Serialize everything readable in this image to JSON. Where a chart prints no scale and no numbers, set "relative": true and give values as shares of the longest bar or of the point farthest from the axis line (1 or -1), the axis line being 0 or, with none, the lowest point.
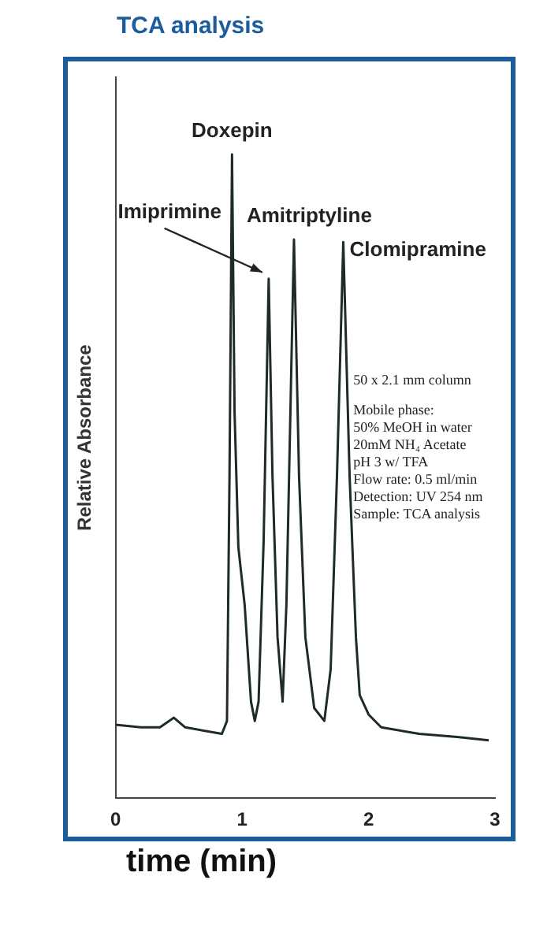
{
  "chart_data": {
    "type": "line",
    "title": "TCA analysis",
    "xlabel": "time (min)",
    "ylabel": "Relative Absorbance",
    "relative": true,
    "x": [
      0,
      0.2,
      0.35,
      0.46,
      0.55,
      0.84,
      0.88,
      0.9,
      0.92,
      0.94,
      0.97,
      1.02,
      1.07,
      1.1,
      1.13,
      1.17,
      1.21,
      1.24,
      1.28,
      1.32,
      1.35,
      1.41,
      1.45,
      1.5,
      1.57,
      1.65,
      1.7,
      1.75,
      1.8,
      1.85,
      1.9,
      1.93,
      2.0,
      2.1,
      2.4,
      2.7,
      2.95
    ],
    "series": [
      {
        "color": "#1e2b28",
        "values": [
          0.114,
          0.11,
          0.11,
          0.125,
          0.11,
          0.1,
          0.12,
          0.5,
          1.0,
          0.6,
          0.39,
          0.3,
          0.15,
          0.12,
          0.15,
          0.4,
          0.807,
          0.5,
          0.25,
          0.15,
          0.3,
          0.868,
          0.5,
          0.25,
          0.14,
          0.12,
          0.2,
          0.5,
          0.864,
          0.5,
          0.25,
          0.16,
          0.13,
          0.11,
          0.1,
          0.095,
          0.09
        ]
      }
    ],
    "xlim": [
      0,
      3
    ],
    "xticks": [
      0,
      1,
      2,
      3
    ],
    "marker": "none",
    "annotations": [
      {
        "text": "Doxepin",
        "x": 0.92,
        "y": 1.0
      },
      {
        "text": "Imiprimine",
        "x": 1.21,
        "y": 0.807
      },
      {
        "text": "Amitriptyline",
        "x": 1.41,
        "y": 0.868
      },
      {
        "text": "Clomipramine",
        "x": 1.8,
        "y": 0.864
      },
      "50 x 2.1 mm column",
      "Mobile phase:",
      "50% MeOH in water",
      "20mM NH₄ Acetate",
      "pH 3 w/ TFA",
      "Flow rate: 0.5 ml/min",
      "Detection: UV 254 nm",
      "Sample: TCA analysis"
    ]
  }
}
